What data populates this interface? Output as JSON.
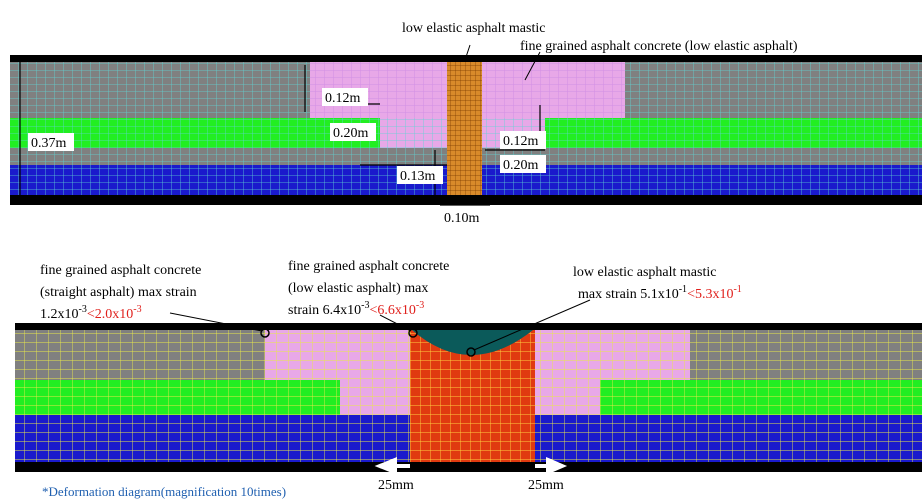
{
  "top_panel": {
    "mastic_label": "low elastic asphalt mastic",
    "concrete_label": "fine grained asphalt concrete (low elastic asphalt)",
    "dimensions": [
      "0.12m",
      "0.20m",
      "0.37m",
      "0.12m",
      "0.20m",
      "0.13m",
      "0.10m"
    ]
  },
  "bottom_panel": {
    "callouts": [
      {
        "lines": [
          "fine grained asphalt concrete",
          "(straight asphalt) max strain"
        ],
        "value": "1.2x10",
        "value_exp": "-3",
        "limit": "<2.0x10",
        "limit_exp": "-3"
      },
      {
        "lines": [
          "fine grained asphalt concrete",
          "(low elastic asphalt) max"
        ],
        "value": "strain 6.4x10",
        "value_exp": "-3",
        "limit": "<6.6x10",
        "limit_exp": "-3"
      },
      {
        "lines": [
          "low elastic asphalt mastic"
        ],
        "value": "max strain 5.1x10",
        "value_exp": "-1",
        "limit": "<5.3x10",
        "limit_exp": "-1"
      }
    ],
    "displacements": [
      "25mm",
      "25mm"
    ],
    "caption": "*Deformation diagram(magnification  10times)"
  }
}
